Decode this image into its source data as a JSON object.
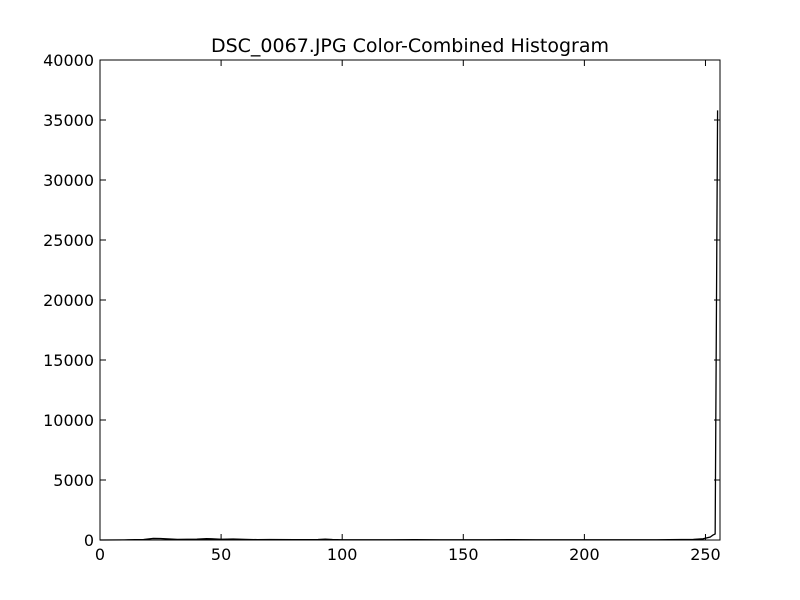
{
  "chart_data": {
    "type": "line",
    "title": "DSC_0067.JPG Color-Combined Histogram",
    "xlabel": "",
    "ylabel": "",
    "xlim": [
      0,
      256
    ],
    "ylim": [
      0,
      40000
    ],
    "xticks": [
      0,
      50,
      100,
      150,
      200,
      250
    ],
    "yticks": [
      0,
      5000,
      10000,
      15000,
      20000,
      25000,
      30000,
      35000,
      40000
    ],
    "grid": false,
    "series": [
      {
        "color": "#000000",
        "x": [
          0,
          10,
          18,
          22,
          25,
          28,
          32,
          36,
          40,
          44,
          46,
          50,
          55,
          60,
          65,
          70,
          80,
          90,
          93,
          96,
          100,
          110,
          120,
          130,
          140,
          150,
          160,
          170,
          180,
          190,
          200,
          210,
          220,
          230,
          240,
          245,
          249,
          252,
          253,
          254,
          255
        ],
        "y": [
          0,
          10,
          40,
          130,
          120,
          90,
          50,
          60,
          70,
          110,
          100,
          60,
          80,
          50,
          30,
          40,
          30,
          40,
          70,
          40,
          20,
          20,
          20,
          30,
          20,
          20,
          20,
          30,
          20,
          20,
          20,
          20,
          20,
          20,
          40,
          50,
          100,
          250,
          400,
          500,
          35800
        ]
      }
    ]
  }
}
